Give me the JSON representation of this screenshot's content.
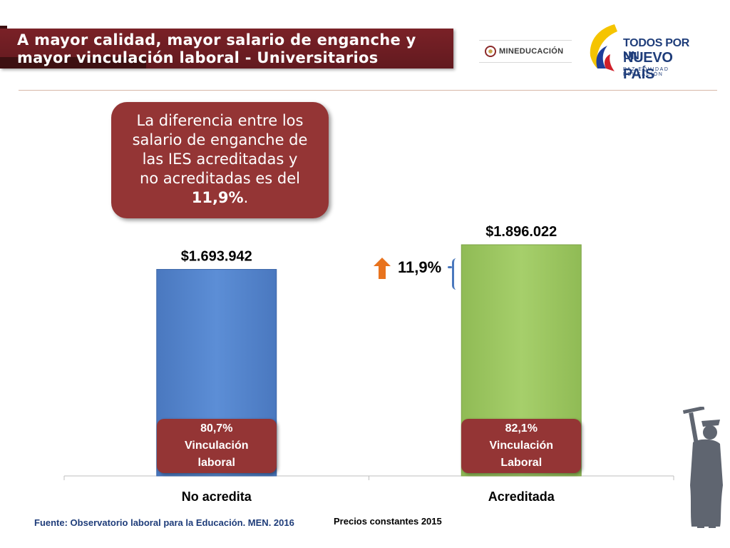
{
  "header": {
    "title_line1": "A mayor calidad, mayor salario de enganche y",
    "title_line2": "mayor vinculación laboral - Universitarios"
  },
  "logos": {
    "mineducacion": "MINEDUCACIÓN",
    "todos_line1": "TODOS POR UN",
    "todos_line2": "NUEVO PAÍS",
    "todos_line3": "PAZ EQUIDAD EDUCACIÓN"
  },
  "callout": {
    "line1": "La diferencia entre los",
    "line2": "salario de enganche de",
    "line3": "las IES acreditadas y",
    "line4": "no acreditadas es del",
    "value": "11,9%",
    "end": "."
  },
  "growth": {
    "label": "11,9%"
  },
  "chart_data": {
    "type": "bar",
    "categories": [
      "No acredita",
      "Acreditada"
    ],
    "values": [
      1693942,
      1896022
    ],
    "data_labels": [
      "$1.693.942",
      "$1.896.022"
    ],
    "colors": [
      "#5585cc",
      "#9cc563"
    ],
    "ylim": [
      0,
      1896022
    ],
    "annotations": [
      {
        "line1": "80,7%",
        "line2": "Vinculación",
        "line3": "laboral"
      },
      {
        "line1": "82,1%",
        "line2": "Vinculación",
        "line3": "Laboral"
      }
    ]
  },
  "footer": {
    "source": "Fuente: Observatorio laboral para la Educación. MEN. 2016",
    "prices": "Precios constantes  2015"
  }
}
